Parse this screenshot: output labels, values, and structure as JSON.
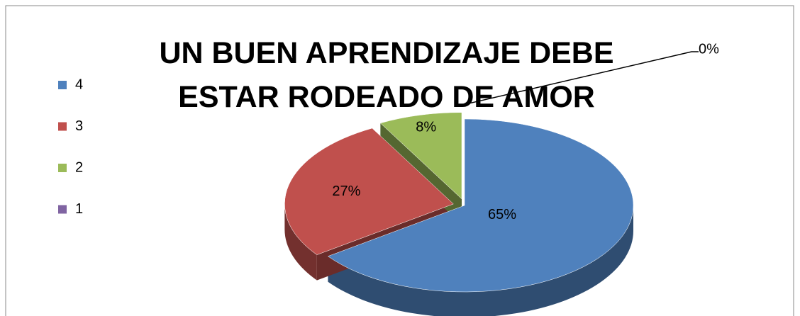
{
  "chart_data": {
    "type": "pie",
    "title": "UN BUEN APRENDIZAJE DEBE ESTAR RODEADO DE AMOR",
    "categories": [
      "4",
      "3",
      "2",
      "1"
    ],
    "values": [
      65,
      27,
      8,
      0
    ],
    "value_labels": [
      "65%",
      "27%",
      "8%",
      "0%"
    ],
    "colors": [
      "#4f81bd",
      "#c0504d",
      "#9bbb59",
      "#8064a2"
    ],
    "legend": "left"
  }
}
